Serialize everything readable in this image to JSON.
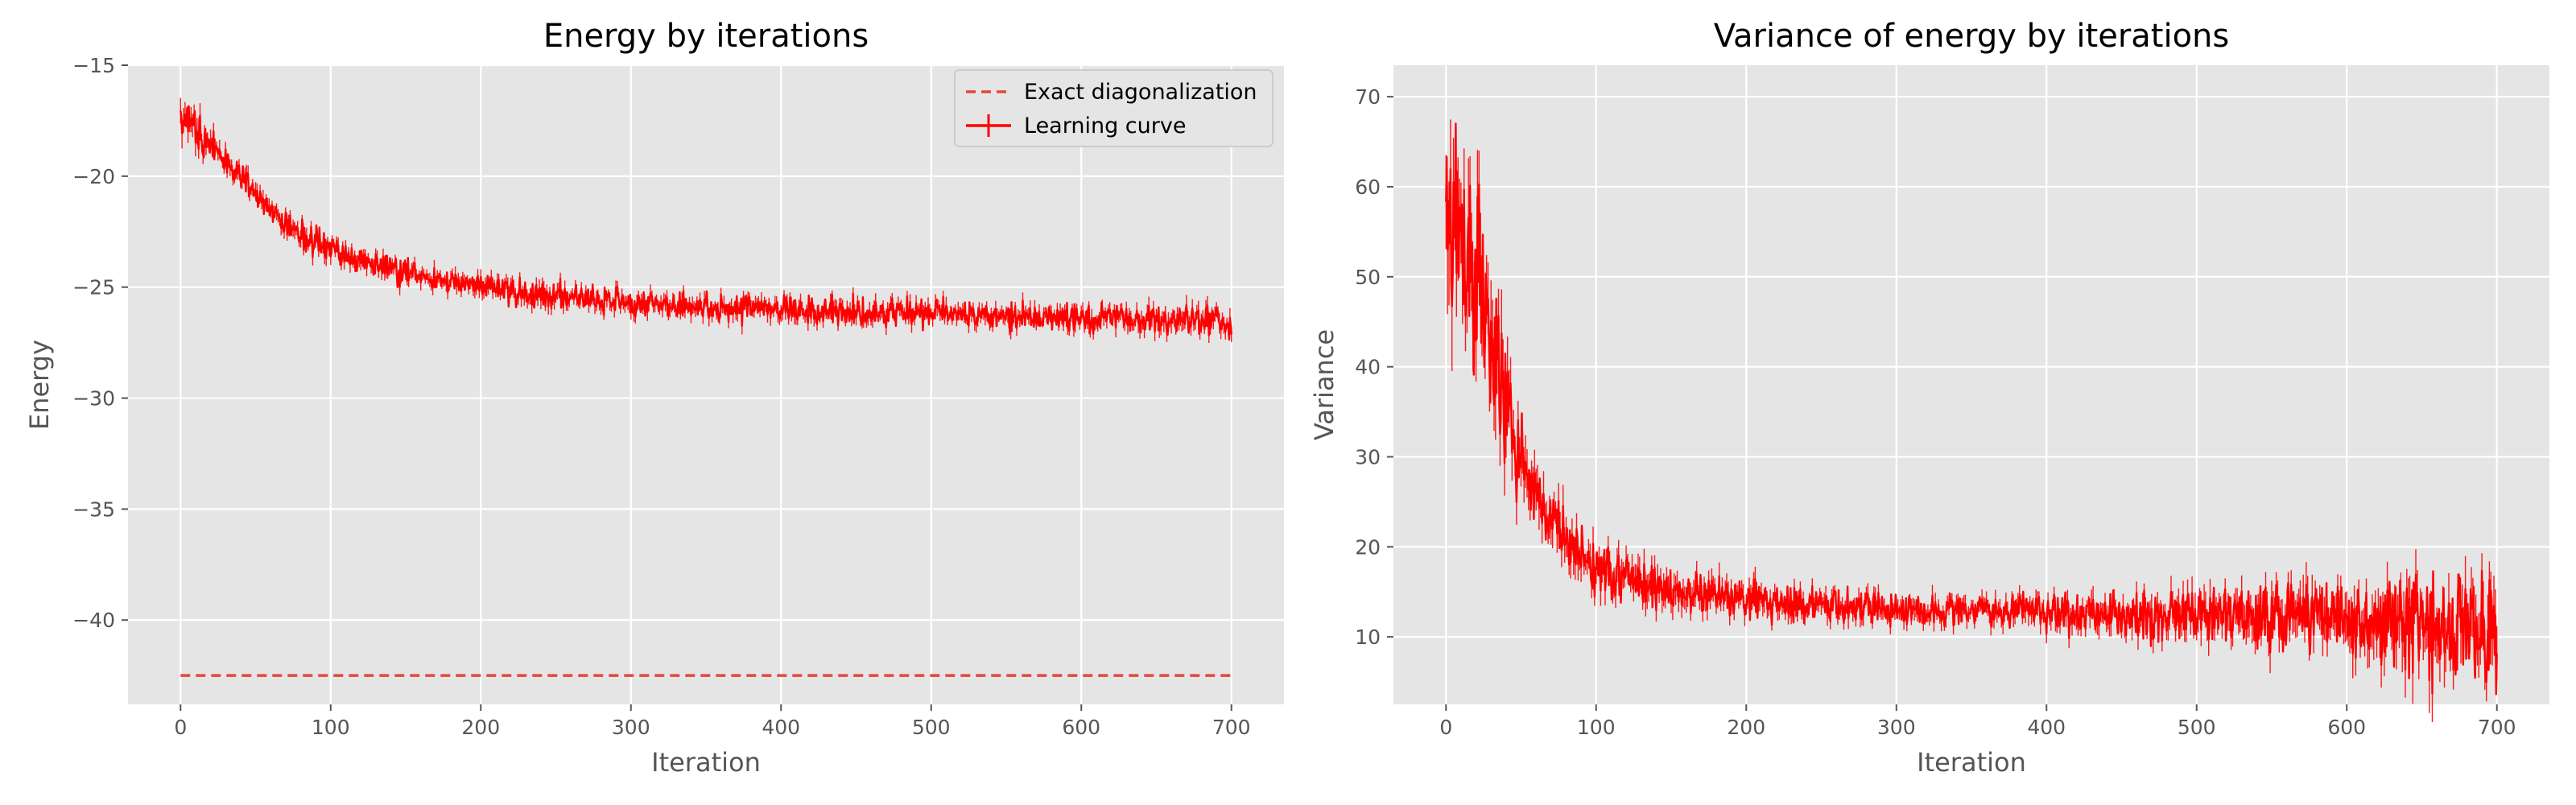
{
  "chart_data": [
    {
      "type": "line",
      "title": "Energy by iterations",
      "xlabel": "Iteration",
      "ylabel": "Energy",
      "xlim": [
        -35,
        735
      ],
      "ylim": [
        -43.8,
        -15
      ],
      "xticks": [
        0,
        100,
        200,
        300,
        400,
        500,
        600,
        700
      ],
      "yticks": [
        -40,
        -35,
        -30,
        -25,
        -20,
        -15
      ],
      "xtick_labels": [
        "0",
        "100",
        "200",
        "300",
        "400",
        "500",
        "600",
        "700"
      ],
      "ytick_labels": [
        "−40",
        "−35",
        "−30",
        "−25",
        "−20",
        "−15"
      ],
      "grid": true,
      "legend_position": "upper right",
      "series": [
        {
          "name": "Exact diagonalization",
          "style": "dashed",
          "color": "#e24a33",
          "x": [
            0,
            700
          ],
          "y": [
            -42.5,
            -42.5
          ]
        },
        {
          "name": "Learning curve",
          "style": "solid",
          "color": "#ff0000",
          "x": [
            0,
            10,
            20,
            30,
            40,
            50,
            60,
            70,
            80,
            90,
            100,
            120,
            140,
            160,
            180,
            200,
            220,
            250,
            300,
            350,
            400,
            450,
            500,
            550,
            600,
            650,
            700
          ],
          "y": [
            -17.3,
            -17.8,
            -18.5,
            -19.3,
            -20.1,
            -20.9,
            -21.6,
            -22.1,
            -22.6,
            -23.0,
            -23.3,
            -23.8,
            -24.2,
            -24.5,
            -24.8,
            -25.0,
            -25.2,
            -25.4,
            -25.7,
            -25.9,
            -26.0,
            -26.1,
            -26.2,
            -26.3,
            -26.4,
            -26.5,
            -26.6
          ],
          "noise_amplitude": [
            1.0,
            0.8,
            0.6,
            0.5,
            0.5,
            0.5,
            0.5,
            0.5,
            0.5,
            0.5,
            0.5,
            0.5,
            0.5,
            0.5,
            0.5,
            0.5,
            0.5,
            0.5,
            0.5,
            0.5,
            0.5,
            0.5,
            0.5,
            0.5,
            0.5,
            0.6,
            0.6
          ]
        }
      ]
    },
    {
      "type": "line",
      "title": "Variance of energy by iterations",
      "xlabel": "Iteration",
      "ylabel": "Variance",
      "xlim": [
        -35,
        735
      ],
      "ylim": [
        2.5,
        73.5
      ],
      "xticks": [
        0,
        100,
        200,
        300,
        400,
        500,
        600,
        700
      ],
      "yticks": [
        10,
        20,
        30,
        40,
        50,
        60,
        70
      ],
      "xtick_labels": [
        "0",
        "100",
        "200",
        "300",
        "400",
        "500",
        "600",
        "700"
      ],
      "ytick_labels": [
        "10",
        "20",
        "30",
        "40",
        "50",
        "60",
        "70"
      ],
      "grid": true,
      "series": [
        {
          "style": "solid",
          "color": "#ff0000",
          "x": [
            0,
            10,
            20,
            30,
            40,
            50,
            60,
            70,
            80,
            90,
            100,
            120,
            140,
            160,
            180,
            200,
            250,
            300,
            350,
            400,
            450,
            500,
            550,
            600,
            650,
            700
          ],
          "y": [
            57,
            55,
            50,
            42,
            35,
            29,
            26,
            23,
            21,
            19,
            17.5,
            16.5,
            15.5,
            15,
            14.5,
            14,
            13.5,
            13,
            13,
            12.8,
            12.5,
            12.5,
            12.5,
            12,
            11.5,
            11
          ],
          "noise_amplitude": [
            9,
            9,
            8,
            7,
            6,
            4,
            3.5,
            3,
            3,
            2.5,
            2.5,
            2.5,
            2.5,
            2,
            2,
            1.8,
            1.5,
            1.5,
            1.5,
            1.8,
            2,
            2.5,
            3,
            3.5,
            5,
            5
          ]
        }
      ]
    }
  ]
}
